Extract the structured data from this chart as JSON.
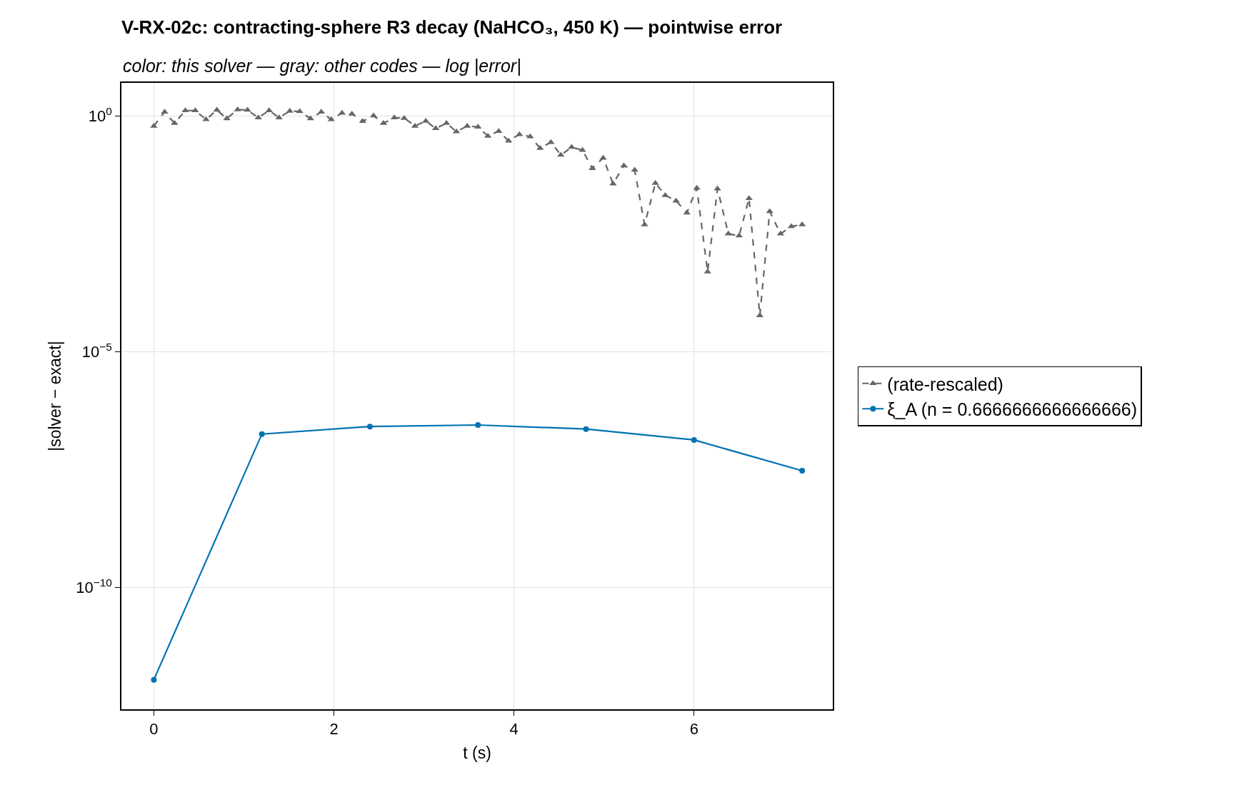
{
  "chart_data": {
    "type": "line",
    "title": "V-RX-02c: contracting-sphere R3 decay (NaHCO₃, 450 K) — pointwise error",
    "subtitle": "color: this solver — gray: other codes — log |error|",
    "xlabel": "t (s)",
    "ylabel": "|solver − exact|",
    "log": "y",
    "grid": true,
    "legend": "right",
    "xlim": [
      -0.36,
      7.54
    ],
    "xticks": [
      0,
      2,
      4,
      6
    ],
    "ylim": [
      2.6e-13,
      5.1
    ],
    "yticks": [
      {
        "value": 1,
        "label": "10$^{0}$"
      },
      {
        "value": 1e-05,
        "label": "10$^{−5}$"
      },
      {
        "value": 1e-10,
        "label": "10$^{−10}$"
      }
    ],
    "series": [
      {
        "name": "(rate-rescaled)",
        "color": "#666666",
        "marker": "triangle",
        "line_style": "dashed",
        "x": [
          0,
          0.12,
          0.23,
          0.35,
          0.46,
          0.58,
          0.7,
          0.81,
          0.93,
          1.04,
          1.16,
          1.28,
          1.39,
          1.51,
          1.62,
          1.74,
          1.86,
          1.97,
          2.09,
          2.2,
          2.32,
          2.44,
          2.55,
          2.67,
          2.78,
          2.9,
          3.02,
          3.13,
          3.25,
          3.36,
          3.48,
          3.6,
          3.71,
          3.83,
          3.94,
          4.06,
          4.18,
          4.29,
          4.41,
          4.52,
          4.64,
          4.76,
          4.87,
          4.99,
          5.1,
          5.22,
          5.34,
          5.45,
          5.57,
          5.68,
          5.8,
          5.92,
          6.03,
          6.15,
          6.26,
          6.38,
          6.5,
          6.61,
          6.73,
          6.84,
          6.96,
          7.08,
          7.2
        ],
        "values": [
          0.62,
          1.23,
          0.71,
          1.32,
          1.32,
          0.85,
          1.35,
          0.89,
          1.38,
          1.35,
          0.93,
          1.32,
          0.93,
          1.29,
          1.26,
          0.89,
          1.23,
          0.85,
          1.17,
          1.12,
          0.78,
          1.02,
          0.71,
          0.93,
          0.91,
          0.62,
          0.79,
          0.55,
          0.71,
          0.47,
          0.62,
          0.59,
          0.38,
          0.48,
          0.3,
          0.41,
          0.37,
          0.21,
          0.28,
          0.15,
          0.22,
          0.19,
          0.078,
          0.13,
          0.037,
          0.089,
          0.072,
          0.005,
          0.038,
          0.021,
          0.016,
          0.0089,
          0.03,
          0.0005,
          0.029,
          0.0032,
          0.0029,
          0.018,
          5.9e-05,
          0.0095,
          0.0032,
          0.0046,
          0.005
        ]
      },
      {
        "name": "ξ_A (n = 0.6666666666666666)",
        "color": "#0072b2",
        "marker": "circle",
        "line_style": "solid",
        "x": [
          0,
          1.2,
          2.4,
          3.6,
          4.8,
          6.0,
          7.2
        ],
        "values": [
          1.1e-12,
          1.8e-07,
          2.6e-07,
          2.8e-07,
          2.3e-07,
          1.35e-07,
          3e-08
        ]
      }
    ]
  }
}
